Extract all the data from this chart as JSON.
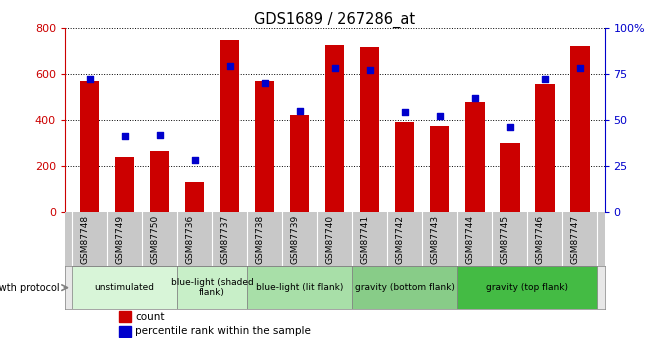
{
  "title": "GDS1689 / 267286_at",
  "samples": [
    "GSM87748",
    "GSM87749",
    "GSM87750",
    "GSM87736",
    "GSM87737",
    "GSM87738",
    "GSM87739",
    "GSM87740",
    "GSM87741",
    "GSM87742",
    "GSM87743",
    "GSM87744",
    "GSM87745",
    "GSM87746",
    "GSM87747"
  ],
  "counts": [
    570,
    240,
    265,
    130,
    745,
    570,
    420,
    725,
    715,
    390,
    375,
    475,
    300,
    555,
    720
  ],
  "percentile_ranks": [
    72,
    41,
    42,
    28,
    79,
    70,
    55,
    78,
    77,
    54,
    52,
    62,
    46,
    72,
    78
  ],
  "bar_color": "#cc0000",
  "dot_color": "#0000cc",
  "ylim_left": [
    0,
    800
  ],
  "ylim_right": [
    0,
    100
  ],
  "yticks_left": [
    0,
    200,
    400,
    600,
    800
  ],
  "yticks_right": [
    0,
    25,
    50,
    75,
    100
  ],
  "group_configs": [
    {
      "label": "unstimulated",
      "start": 0,
      "end": 3,
      "color": "#d8f5d8"
    },
    {
      "label": "blue-light (shaded\nflank)",
      "start": 3,
      "end": 5,
      "color": "#c8efc8"
    },
    {
      "label": "blue-light (lit flank)",
      "start": 5,
      "end": 8,
      "color": "#a8dfa8"
    },
    {
      "label": "gravity (bottom flank)",
      "start": 8,
      "end": 11,
      "color": "#88cc88"
    },
    {
      "label": "gravity (top flank)",
      "start": 11,
      "end": 15,
      "color": "#44bb44"
    }
  ],
  "tick_bg_color": "#c8c8c8",
  "left_axis_color": "#cc0000",
  "right_axis_color": "#0000cc",
  "growth_protocol_label": "growth protocol",
  "legend_count": "count",
  "legend_pct": "percentile rank within the sample"
}
